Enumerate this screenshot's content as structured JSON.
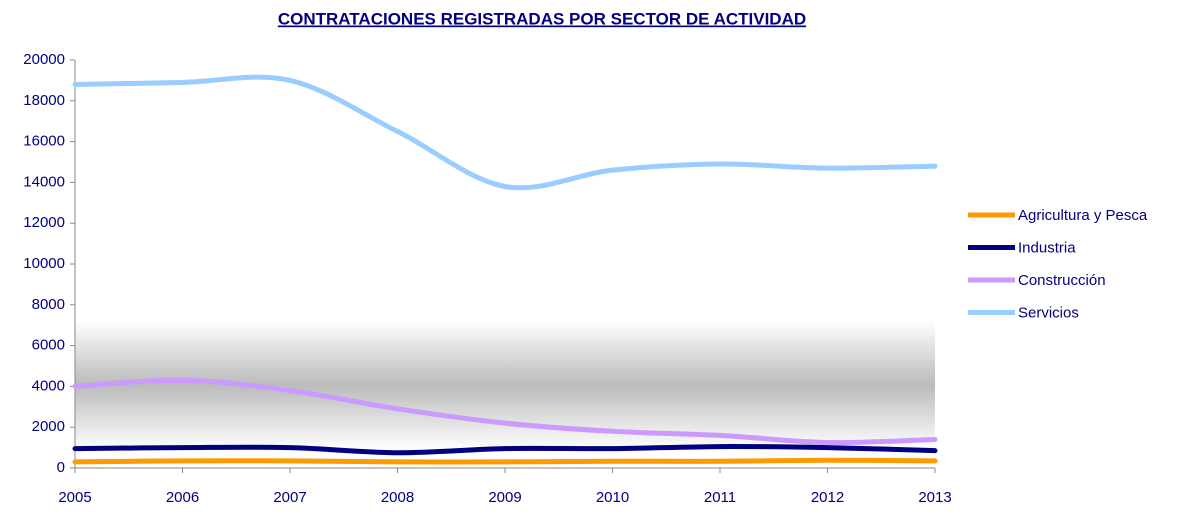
{
  "chart_data": {
    "type": "line",
    "title": "CONTRATACIONES REGISTRADAS POR  SECTOR DE ACTIVIDAD",
    "x": [
      2005,
      2006,
      2007,
      2008,
      2009,
      2010,
      2011,
      2012,
      2013
    ],
    "xlim": [
      2005,
      2013
    ],
    "xticks": [
      2005,
      2006,
      2007,
      2008,
      2009,
      2010,
      2011,
      2012,
      2013
    ],
    "ylim": [
      0,
      20000
    ],
    "yticks": [
      0,
      2000,
      4000,
      6000,
      8000,
      10000,
      12000,
      14000,
      16000,
      18000,
      20000
    ],
    "legend": "right",
    "smooth": true,
    "series": [
      {
        "name": "Agricultura y Pesca",
        "color": "#ff9900",
        "values": [
          300,
          350,
          350,
          300,
          300,
          330,
          330,
          380,
          350
        ]
      },
      {
        "name": "Industria",
        "color": "#000080",
        "values": [
          950,
          1000,
          1000,
          750,
          950,
          950,
          1050,
          1000,
          850
        ]
      },
      {
        "name": "Construcción",
        "color": "#cc99ff",
        "values": [
          4000,
          4300,
          3800,
          2900,
          2200,
          1800,
          1600,
          1250,
          1400
        ]
      },
      {
        "name": "Servicios",
        "color": "#99ccff",
        "values": [
          18800,
          18900,
          19000,
          16500,
          13800,
          14600,
          14900,
          14700,
          14800
        ]
      }
    ]
  }
}
